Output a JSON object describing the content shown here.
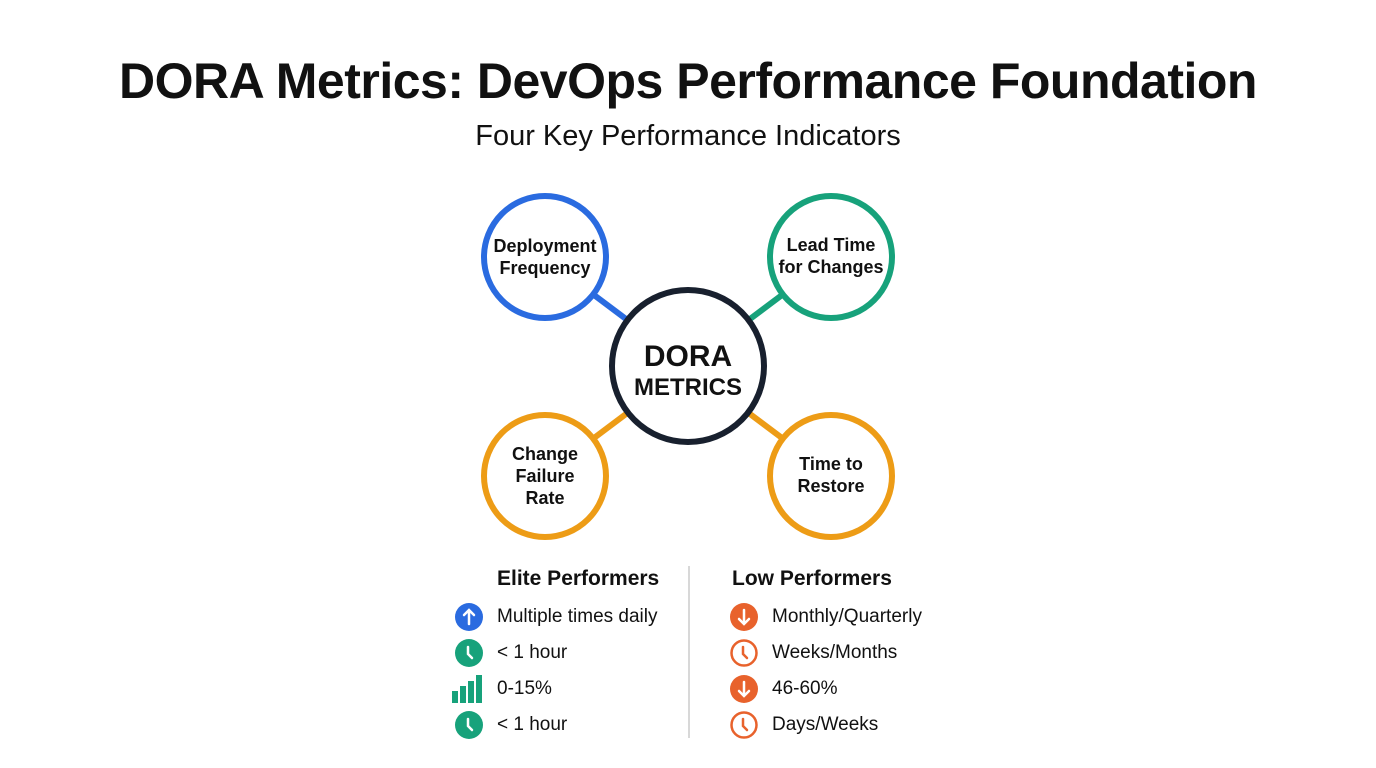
{
  "title": "DORA Metrics: DevOps Performance Foundation",
  "subtitle": "Four Key Performance Indicators",
  "center": {
    "line1": "DORA",
    "line2": "METRICS"
  },
  "metrics": [
    {
      "line1": "Deployment",
      "line2": "Frequency",
      "color": "#2a6be0"
    },
    {
      "line1": "Lead Time",
      "line2": "for Changes",
      "color": "#17a27b"
    },
    {
      "line1": "Change",
      "line2": "Failure",
      "line3": "Rate",
      "color": "#ed9c16"
    },
    {
      "line1": "Time to",
      "line2": "Restore",
      "color": "#ed9c16"
    }
  ],
  "elite": {
    "heading": "Elite Performers",
    "items": [
      {
        "icon": "arrow-up-circle-icon",
        "text": "Multiple times daily"
      },
      {
        "icon": "clock-icon",
        "text": "< 1 hour"
      },
      {
        "icon": "bar-chart-icon",
        "text": "0-15%"
      },
      {
        "icon": "clock-icon",
        "text": "< 1 hour"
      }
    ]
  },
  "low": {
    "heading": "Low Performers",
    "items": [
      {
        "icon": "arrow-down-circle-icon",
        "text": "Monthly/Quarterly"
      },
      {
        "icon": "clock-outline-icon",
        "text": "Weeks/Months"
      },
      {
        "icon": "arrow-down-circle-icon",
        "text": "46-60%"
      },
      {
        "icon": "clock-outline-icon",
        "text": "Days/Weeks"
      }
    ]
  },
  "colors": {
    "dark": "#18202e",
    "blue": "#2a6be0",
    "green": "#17a27b",
    "orange": "#ed9c16",
    "red_orange": "#e8622c"
  }
}
